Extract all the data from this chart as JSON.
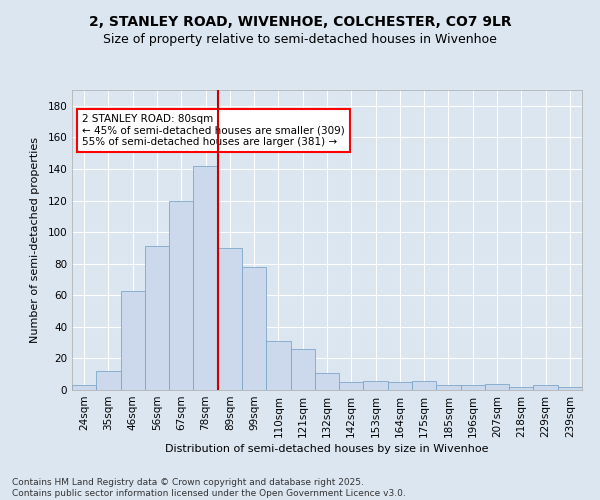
{
  "title_line1": "2, STANLEY ROAD, WIVENHOE, COLCHESTER, CO7 9LR",
  "title_line2": "Size of property relative to semi-detached houses in Wivenhoe",
  "xlabel": "Distribution of semi-detached houses by size in Wivenhoe",
  "ylabel": "Number of semi-detached properties",
  "categories": [
    "24sqm",
    "35sqm",
    "46sqm",
    "56sqm",
    "67sqm",
    "78sqm",
    "89sqm",
    "99sqm",
    "110sqm",
    "121sqm",
    "132sqm",
    "142sqm",
    "153sqm",
    "164sqm",
    "175sqm",
    "185sqm",
    "196sqm",
    "207sqm",
    "218sqm",
    "229sqm",
    "239sqm"
  ],
  "bar_values": [
    3,
    12,
    63,
    91,
    120,
    142,
    90,
    78,
    31,
    26,
    11,
    5,
    6,
    5,
    6,
    3,
    3,
    4,
    2,
    3,
    2
  ],
  "bar_color": "#ccd9ed",
  "bar_edge_color": "#7da6c8",
  "vline_color": "#cc0000",
  "vline_x_index": 5.5,
  "annotation_title": "2 STANLEY ROAD: 80sqm",
  "annotation_line1": "← 45% of semi-detached houses are smaller (309)",
  "annotation_line2": "55% of semi-detached houses are larger (381) →",
  "ylim_max": 190,
  "yticks": [
    0,
    20,
    40,
    60,
    80,
    100,
    120,
    140,
    160,
    180
  ],
  "background_color": "#dce6f1",
  "plot_bg_color": "#dce6f1",
  "grid_color": "#ffffff",
  "footer_line1": "Contains HM Land Registry data © Crown copyright and database right 2025.",
  "footer_line2": "Contains public sector information licensed under the Open Government Licence v3.0.",
  "title_fontsize": 10,
  "subtitle_fontsize": 9,
  "axis_label_fontsize": 8,
  "tick_fontsize": 7.5,
  "annotation_fontsize": 7.5,
  "footer_fontsize": 6.5
}
